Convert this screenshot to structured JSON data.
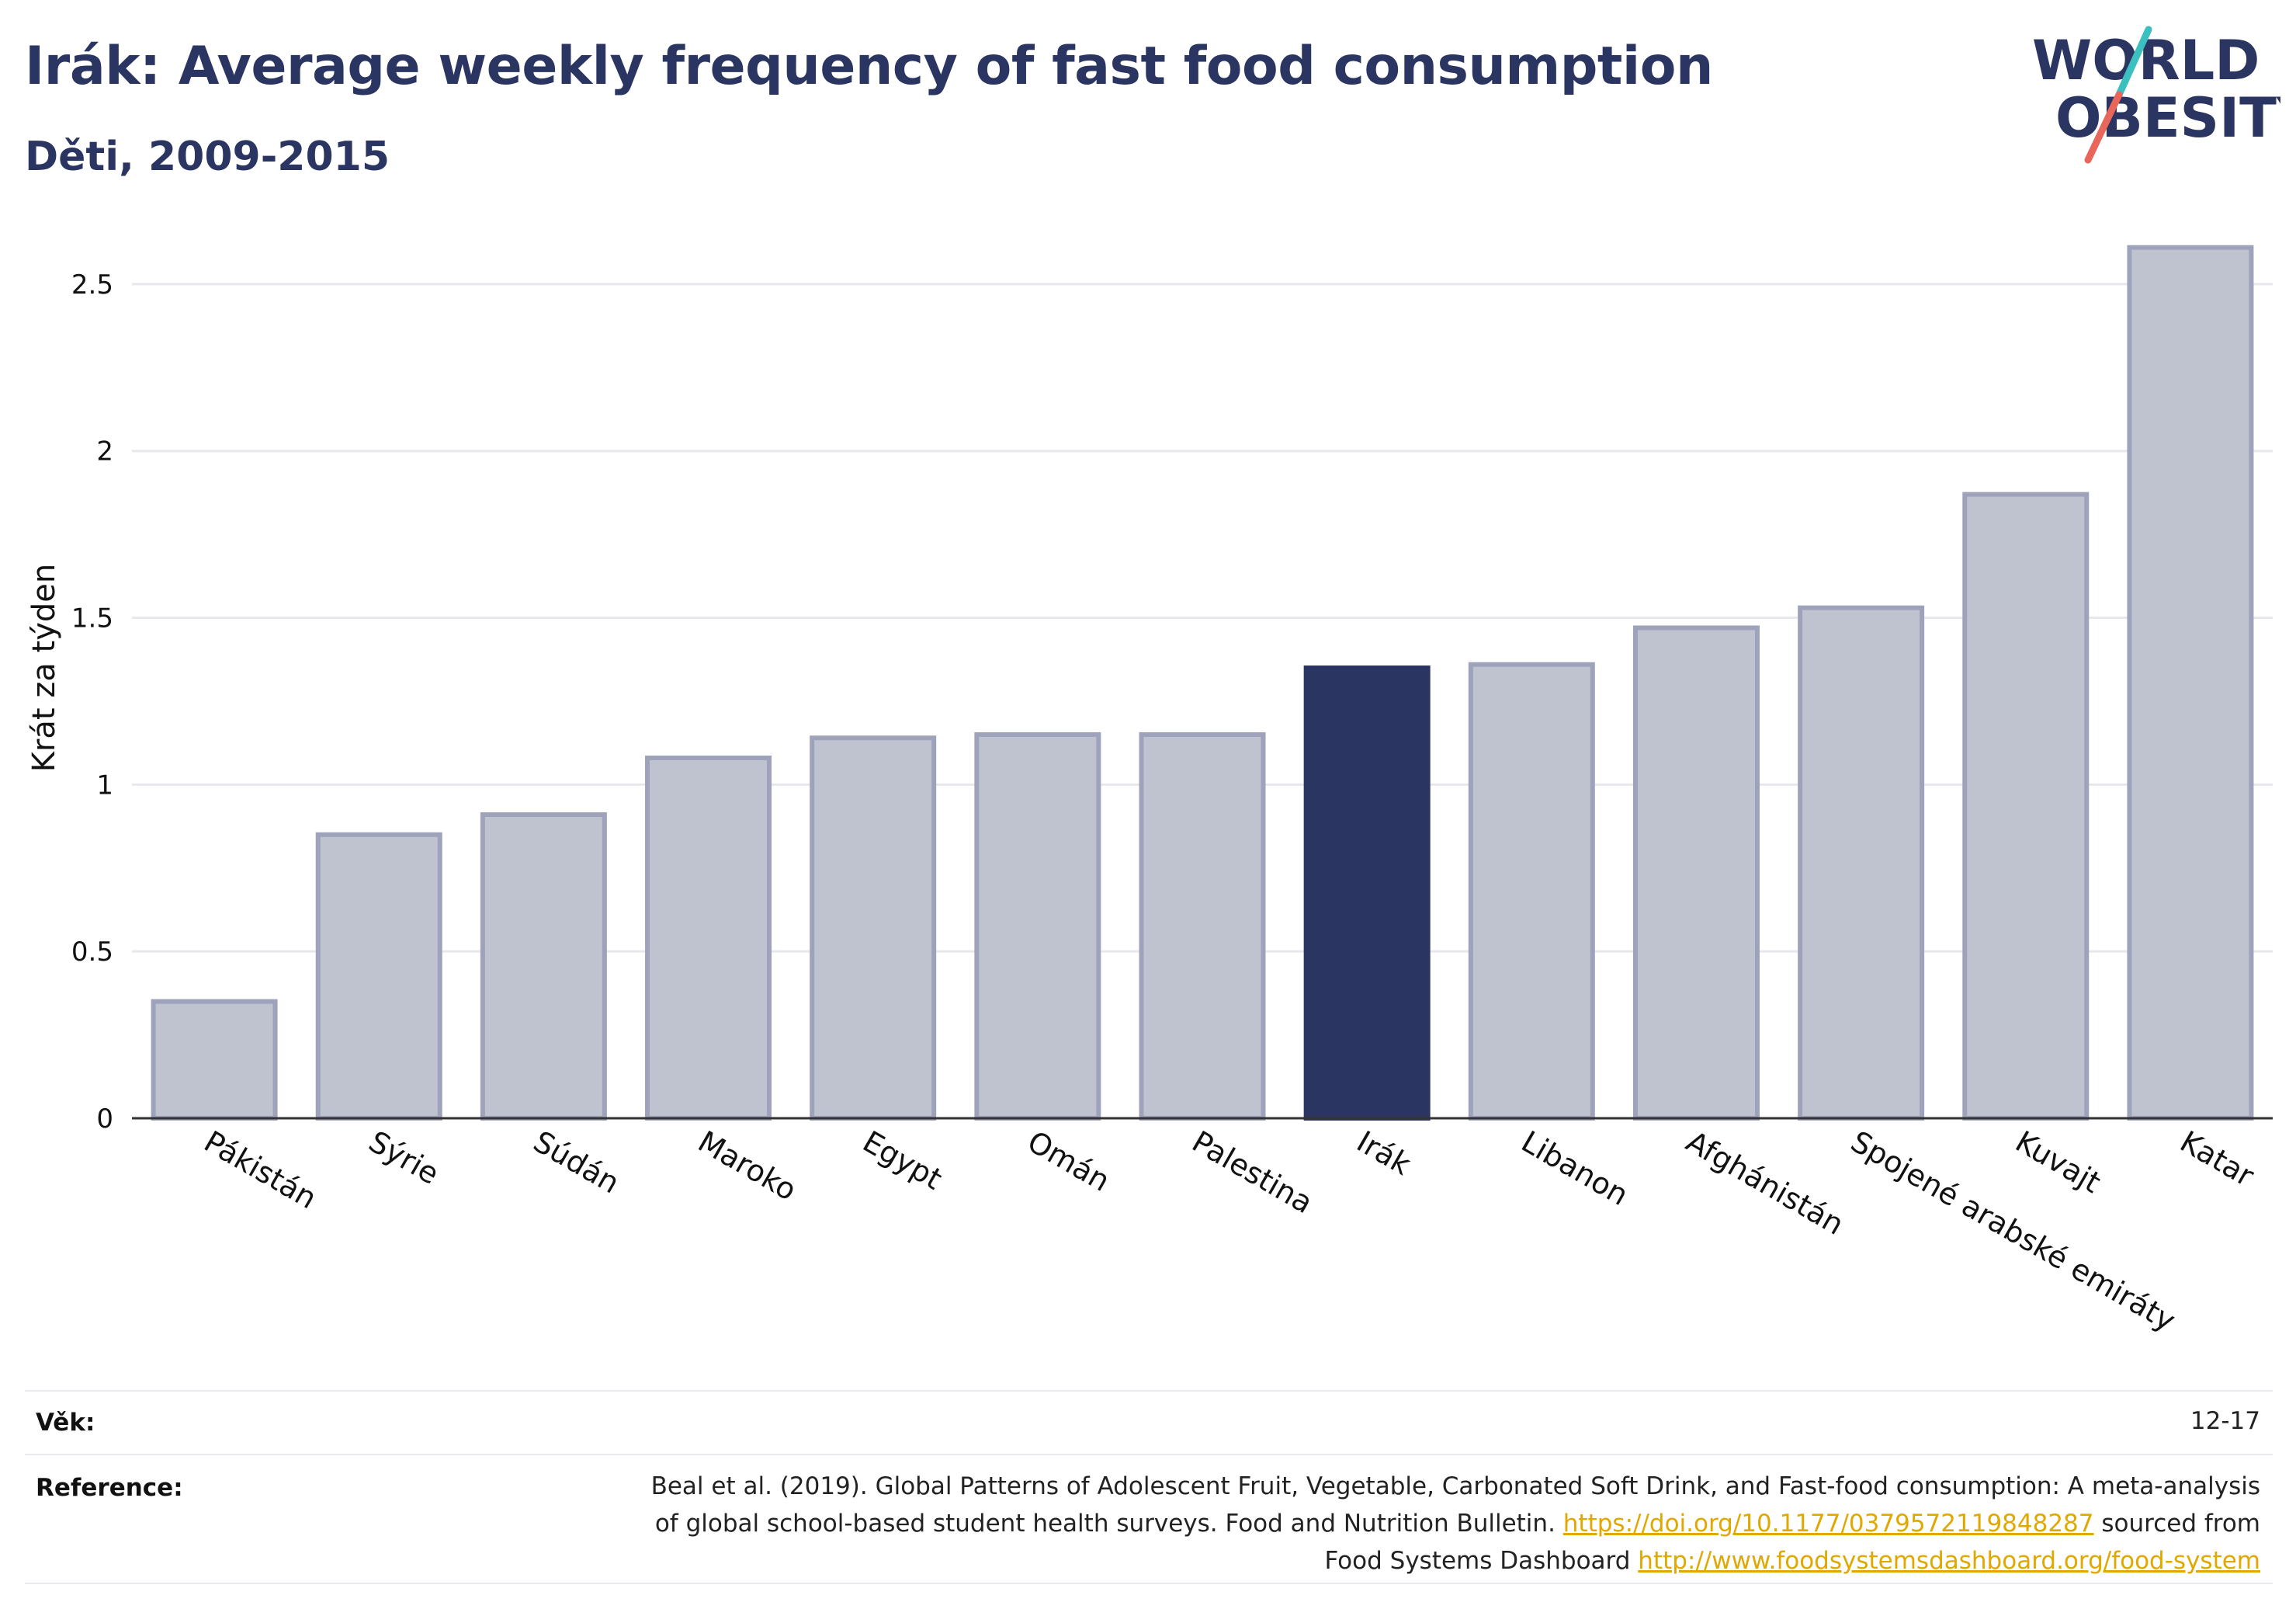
{
  "header": {
    "title": "Irák: Average weekly frequency of fast food consumption",
    "subtitle": "Děti, 2009-2015"
  },
  "logo": {
    "line1": "WORLD",
    "line2": "OBESITY",
    "colors": {
      "text": "#2b3561",
      "slash_top": "#3bbfbf",
      "slash_bottom": "#e8665a"
    }
  },
  "colors": {
    "highlight": "#2b3561",
    "bar": "#bfc2cf",
    "bar_border": "#9ea3bb",
    "grid": "#e8e8ec"
  },
  "chart_data": {
    "type": "bar",
    "ylabel": "Krát za týden",
    "ylim": [
      0,
      2.7
    ],
    "yticks": [
      0,
      0.5,
      1,
      1.5,
      2,
      2.5
    ],
    "ytick_labels": [
      "0",
      "0.5",
      "1",
      "1.5",
      "2",
      "2.5"
    ],
    "grid": true,
    "highlight": "Irák",
    "categories": [
      "Pákistán",
      "Sýrie",
      "Súdán",
      "Maroko",
      "Egypt",
      "Omán",
      "Palestina",
      "Irák",
      "Libanon",
      "Afghánistán",
      "Spojené arabské emiráty",
      "Kuvajt",
      "Katar"
    ],
    "values": [
      0.35,
      0.85,
      0.91,
      1.08,
      1.14,
      1.15,
      1.15,
      1.35,
      1.36,
      1.47,
      1.53,
      1.87,
      2.61
    ]
  },
  "meta": {
    "age_label": "Věk:",
    "age_value": "12-17",
    "reference_label": "Reference:",
    "reference_line1": "Beal et al. (2019). Global Patterns of Adolescent Fruit, Vegetable, Carbonated Soft Drink, and Fast-food consumption: A meta-analysis",
    "reference_line2": "of global school-based student health surveys. Food and Nutrition Bulletin.",
    "doi_link": "https://doi.org/10.1177/0379572119848287",
    "sourced_from": "sourced from",
    "reference_line3": "Food Systems Dashboard",
    "dashboard_link": "http://www.foodsystemsdashboard.org/food-system"
  }
}
